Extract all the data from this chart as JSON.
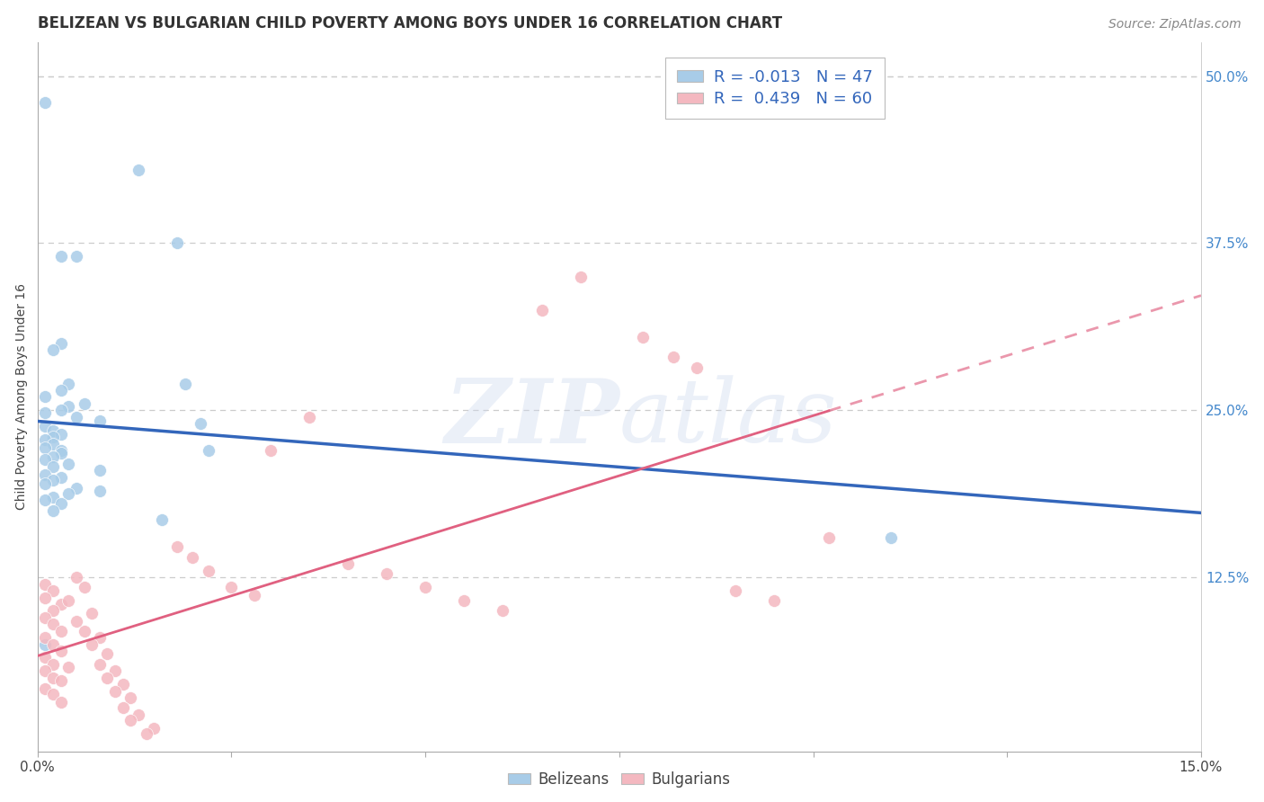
{
  "title": "BELIZEAN VS BULGARIAN CHILD POVERTY AMONG BOYS UNDER 16 CORRELATION CHART",
  "source": "Source: ZipAtlas.com",
  "ylabel": "Child Poverty Among Boys Under 16",
  "watermark_zip": "ZIP",
  "watermark_atlas": "atlas",
  "xlim": [
    0.0,
    0.15
  ],
  "ylim": [
    -0.005,
    0.525
  ],
  "belizean_R": -0.013,
  "belizean_N": 47,
  "bulgarian_R": 0.439,
  "bulgarian_N": 60,
  "belizean_color": "#a8cce8",
  "bulgarian_color": "#f4b8c0",
  "belizean_line_color": "#3366bb",
  "bulgarian_line_color": "#e06080",
  "background_color": "#ffffff",
  "grid_color": "#cccccc",
  "ytick_color": "#4488cc",
  "legend_text_color": "#3366bb",
  "belizean_scatter": [
    [
      0.001,
      0.48
    ],
    [
      0.013,
      0.43
    ],
    [
      0.018,
      0.375
    ],
    [
      0.005,
      0.365
    ],
    [
      0.003,
      0.365
    ],
    [
      0.003,
      0.3
    ],
    [
      0.002,
      0.295
    ],
    [
      0.004,
      0.27
    ],
    [
      0.019,
      0.27
    ],
    [
      0.003,
      0.265
    ],
    [
      0.001,
      0.26
    ],
    [
      0.006,
      0.255
    ],
    [
      0.004,
      0.253
    ],
    [
      0.003,
      0.25
    ],
    [
      0.001,
      0.248
    ],
    [
      0.005,
      0.245
    ],
    [
      0.008,
      0.242
    ],
    [
      0.021,
      0.24
    ],
    [
      0.001,
      0.238
    ],
    [
      0.002,
      0.235
    ],
    [
      0.003,
      0.232
    ],
    [
      0.002,
      0.23
    ],
    [
      0.001,
      0.228
    ],
    [
      0.002,
      0.225
    ],
    [
      0.001,
      0.222
    ],
    [
      0.003,
      0.22
    ],
    [
      0.003,
      0.218
    ],
    [
      0.002,
      0.215
    ],
    [
      0.001,
      0.213
    ],
    [
      0.004,
      0.21
    ],
    [
      0.002,
      0.208
    ],
    [
      0.008,
      0.205
    ],
    [
      0.001,
      0.202
    ],
    [
      0.003,
      0.2
    ],
    [
      0.002,
      0.198
    ],
    [
      0.001,
      0.195
    ],
    [
      0.005,
      0.192
    ],
    [
      0.008,
      0.19
    ],
    [
      0.004,
      0.188
    ],
    [
      0.002,
      0.185
    ],
    [
      0.001,
      0.183
    ],
    [
      0.003,
      0.18
    ],
    [
      0.002,
      0.175
    ],
    [
      0.016,
      0.168
    ],
    [
      0.001,
      0.075
    ],
    [
      0.022,
      0.22
    ],
    [
      0.11,
      0.155
    ]
  ],
  "bulgarian_scatter": [
    [
      0.001,
      0.12
    ],
    [
      0.002,
      0.115
    ],
    [
      0.001,
      0.11
    ],
    [
      0.003,
      0.105
    ],
    [
      0.002,
      0.1
    ],
    [
      0.001,
      0.095
    ],
    [
      0.002,
      0.09
    ],
    [
      0.003,
      0.085
    ],
    [
      0.001,
      0.08
    ],
    [
      0.002,
      0.075
    ],
    [
      0.003,
      0.07
    ],
    [
      0.001,
      0.065
    ],
    [
      0.002,
      0.06
    ],
    [
      0.004,
      0.058
    ],
    [
      0.001,
      0.055
    ],
    [
      0.002,
      0.05
    ],
    [
      0.003,
      0.048
    ],
    [
      0.001,
      0.042
    ],
    [
      0.002,
      0.038
    ],
    [
      0.003,
      0.032
    ],
    [
      0.005,
      0.125
    ],
    [
      0.006,
      0.118
    ],
    [
      0.004,
      0.108
    ],
    [
      0.007,
      0.098
    ],
    [
      0.005,
      0.092
    ],
    [
      0.006,
      0.085
    ],
    [
      0.008,
      0.08
    ],
    [
      0.007,
      0.075
    ],
    [
      0.009,
      0.068
    ],
    [
      0.008,
      0.06
    ],
    [
      0.01,
      0.055
    ],
    [
      0.009,
      0.05
    ],
    [
      0.011,
      0.045
    ],
    [
      0.01,
      0.04
    ],
    [
      0.012,
      0.035
    ],
    [
      0.011,
      0.028
    ],
    [
      0.013,
      0.022
    ],
    [
      0.012,
      0.018
    ],
    [
      0.015,
      0.012
    ],
    [
      0.014,
      0.008
    ],
    [
      0.018,
      0.148
    ],
    [
      0.02,
      0.14
    ],
    [
      0.022,
      0.13
    ],
    [
      0.025,
      0.118
    ],
    [
      0.028,
      0.112
    ],
    [
      0.03,
      0.22
    ],
    [
      0.035,
      0.245
    ],
    [
      0.04,
      0.135
    ],
    [
      0.045,
      0.128
    ],
    [
      0.05,
      0.118
    ],
    [
      0.055,
      0.108
    ],
    [
      0.06,
      0.1
    ],
    [
      0.065,
      0.325
    ],
    [
      0.07,
      0.35
    ],
    [
      0.078,
      0.305
    ],
    [
      0.082,
      0.29
    ],
    [
      0.085,
      0.282
    ],
    [
      0.09,
      0.115
    ],
    [
      0.095,
      0.108
    ],
    [
      0.102,
      0.155
    ]
  ],
  "title_fontsize": 12,
  "ylabel_fontsize": 10,
  "tick_fontsize": 11
}
